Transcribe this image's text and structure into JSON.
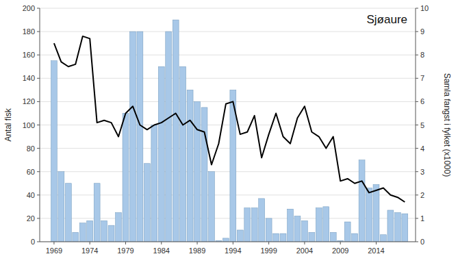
{
  "chart_data": {
    "type": "bar",
    "title": "Sjøaure",
    "ylabel": "Antal fisk",
    "y2label": "Samla fangst i fylket (x1000)",
    "x": [
      1969,
      1970,
      1971,
      1972,
      1973,
      1974,
      1975,
      1976,
      1977,
      1978,
      1979,
      1980,
      1981,
      1982,
      1983,
      1984,
      1985,
      1986,
      1987,
      1988,
      1989,
      1990,
      1991,
      1992,
      1993,
      1994,
      1995,
      1996,
      1997,
      1998,
      1999,
      2000,
      2001,
      2002,
      2003,
      2004,
      2005,
      2006,
      2007,
      2008,
      2009,
      2010,
      2011,
      2012,
      2013,
      2014,
      2015,
      2016,
      2017,
      2018
    ],
    "series": [
      {
        "type": "bar",
        "color": "#a8c8e8",
        "values": [
          155,
          60,
          50,
          8,
          16,
          18,
          50,
          18,
          14,
          25,
          110,
          180,
          180,
          67,
          100,
          150,
          180,
          190,
          150,
          130,
          120,
          115,
          60,
          1,
          3,
          130,
          10,
          29,
          29,
          37,
          20,
          7,
          7,
          28,
          22,
          18,
          8,
          29,
          30,
          8,
          1,
          17,
          7,
          70,
          46,
          49,
          6,
          27,
          25,
          24
        ]
      },
      {
        "type": "line",
        "axis": "y2",
        "color": "#000000",
        "values": [
          8.5,
          7.7,
          7.5,
          7.6,
          8.8,
          8.7,
          5.1,
          5.2,
          5.1,
          4.5,
          5.5,
          5.8,
          5.0,
          4.8,
          5.0,
          5.1,
          5.3,
          5.5,
          5.0,
          5.2,
          4.8,
          4.7,
          3.3,
          4.2,
          5.9,
          6.0,
          4.6,
          4.7,
          5.4,
          3.6,
          4.6,
          5.5,
          4.5,
          4.2,
          5.3,
          5.8,
          4.7,
          4.5,
          4.0,
          4.5,
          2.6,
          2.7,
          2.5,
          2.6,
          2.1,
          2.2,
          2.3,
          2.0,
          1.9,
          1.7
        ]
      }
    ],
    "xlim": [
      1967.0,
      2019.5
    ],
    "xticks": [
      1969,
      1974,
      1979,
      1984,
      1989,
      1994,
      1999,
      2004,
      2009,
      2014
    ],
    "ylim": [
      0,
      200
    ],
    "yticks": [
      0,
      20,
      40,
      60,
      80,
      100,
      120,
      140,
      160,
      180,
      200
    ],
    "y2lim": [
      0,
      10
    ],
    "y2ticks": [
      0,
      1,
      2,
      3,
      4,
      5,
      6,
      7,
      8,
      9,
      10
    ],
    "grid": true
  }
}
